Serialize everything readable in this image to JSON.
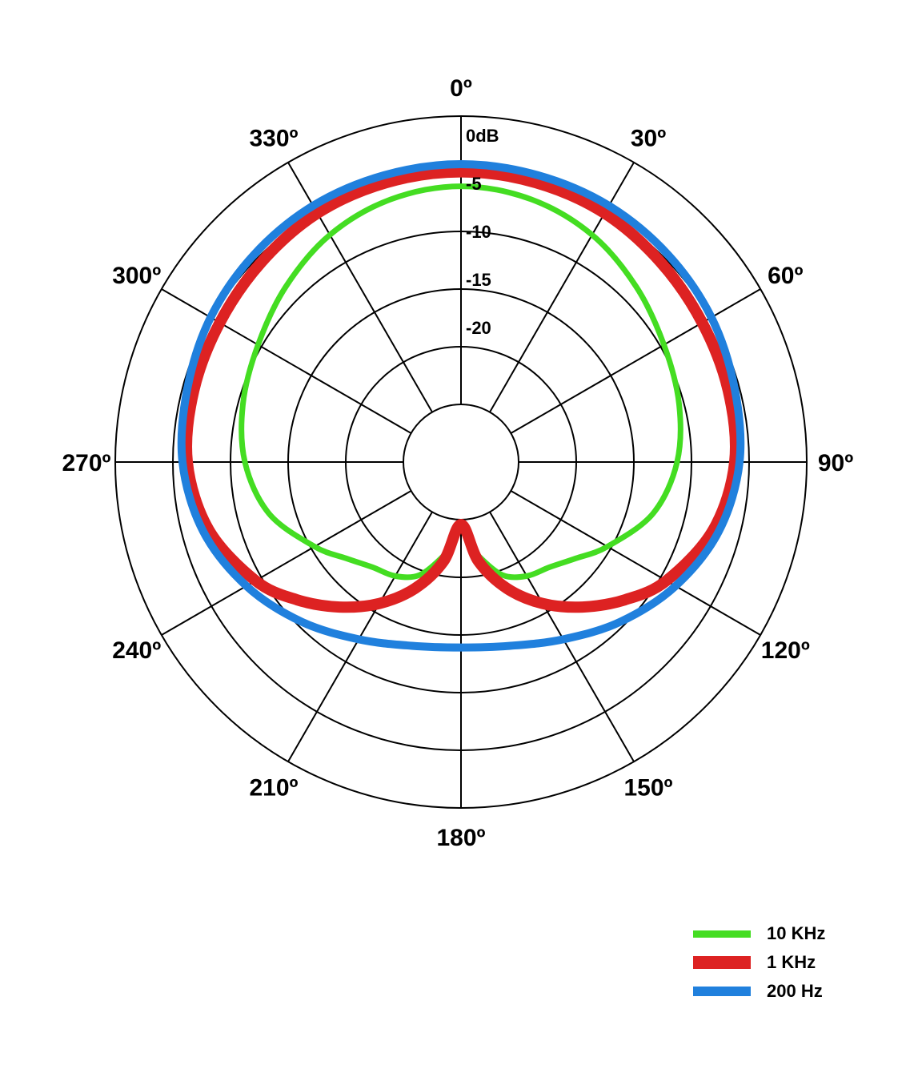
{
  "chart_data": {
    "type": "polar",
    "angle_unit": "degrees",
    "angular_ticks": [
      "0º",
      "30º",
      "60º",
      "90º",
      "120º",
      "150º",
      "180º",
      "210º",
      "240º",
      "270º",
      "300º",
      "330º"
    ],
    "radial_ticks": [
      "0dB",
      "-5",
      "-10",
      "-15",
      "-20"
    ],
    "radial_range_db": [
      -25,
      5
    ],
    "grid": true,
    "legend_position": "bottom-right",
    "series": [
      {
        "name": "10 KHz",
        "color": "#44dd22",
        "stroke": 7,
        "angles": [
          0,
          15,
          30,
          45,
          60,
          75,
          90,
          105,
          120,
          130,
          140,
          150,
          160,
          170,
          175,
          180
        ],
        "values": [
          -2.3,
          -2.7,
          -3.7,
          -5.2,
          -6.6,
          -7.5,
          -8.5,
          -10.3,
          -13.4,
          -15.4,
          -16.7,
          -17.3,
          -18.5,
          -21.2,
          -22.8,
          -24.5
        ]
      },
      {
        "name": "1 KHz",
        "color": "#dd2222",
        "stroke": 14,
        "angles": [
          0,
          15,
          30,
          45,
          60,
          75,
          90,
          105,
          120,
          130,
          140,
          150,
          160,
          170,
          180
        ],
        "values": [
          -0.8,
          -0.9,
          -1.1,
          -1.6,
          -2.0,
          -2.2,
          -2.5,
          -3.8,
          -6.3,
          -8.7,
          -11.3,
          -14.0,
          -17.0,
          -20.5,
          -24.5
        ]
      },
      {
        "name": "200 Hz",
        "color": "#2080dd",
        "stroke": 10,
        "angles": [
          0,
          15,
          30,
          45,
          60,
          75,
          90,
          105,
          120,
          135,
          150,
          165,
          180
        ],
        "values": [
          0.0,
          -0.1,
          -0.2,
          -0.5,
          -0.9,
          -1.5,
          -2.0,
          -3.2,
          -5.2,
          -7.5,
          -9.7,
          -11.2,
          -11.7
        ]
      }
    ]
  }
}
